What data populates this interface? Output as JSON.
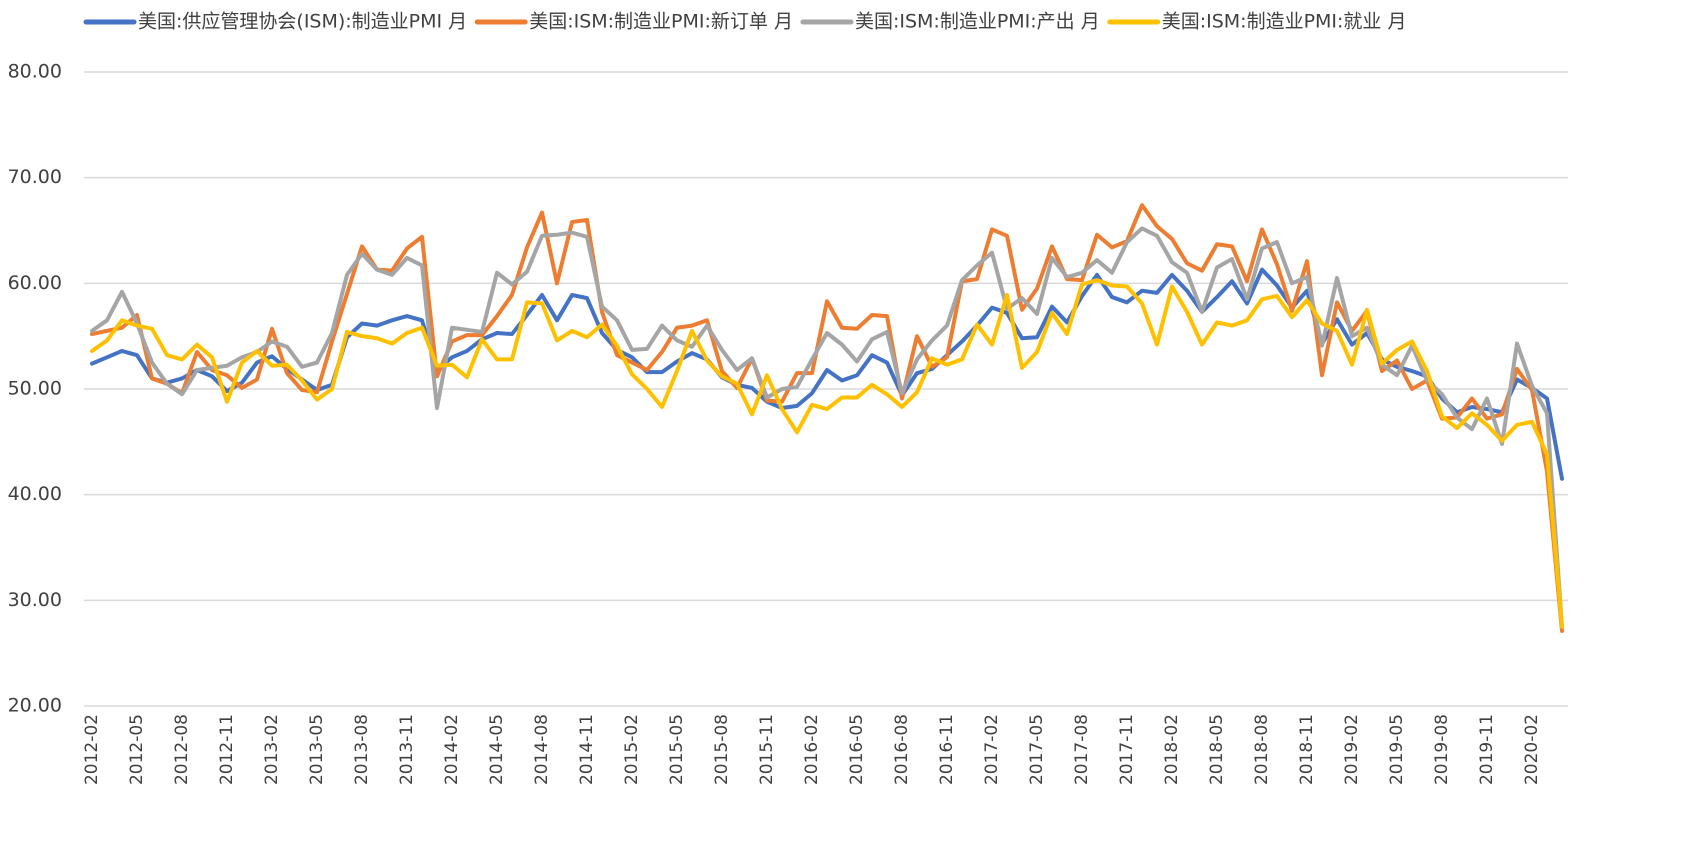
{
  "chart_data": {
    "type": "line",
    "categories": [
      "2012-02",
      null,
      null,
      "2012-05",
      null,
      null,
      "2012-08",
      null,
      null,
      "2012-11",
      null,
      null,
      "2013-02",
      null,
      null,
      "2013-05",
      null,
      null,
      "2013-08",
      null,
      null,
      "2013-11",
      null,
      null,
      "2014-02",
      null,
      null,
      "2014-05",
      null,
      null,
      "2014-08",
      null,
      null,
      "2014-11",
      null,
      null,
      "2015-02",
      null,
      null,
      "2015-05",
      null,
      null,
      "2015-08",
      null,
      null,
      "2015-11",
      null,
      null,
      "2016-02",
      null,
      null,
      "2016-05",
      null,
      null,
      "2016-08",
      null,
      null,
      "2016-11",
      null,
      null,
      "2017-02",
      null,
      null,
      "2017-05",
      null,
      null,
      "2017-08",
      null,
      null,
      "2017-11",
      null,
      null,
      "2018-02",
      null,
      null,
      "2018-05",
      null,
      null,
      "2018-08",
      null,
      null,
      "2018-11",
      null,
      null,
      "2019-02",
      null,
      null,
      "2019-05",
      null,
      null,
      "2019-08",
      null,
      null,
      "2019-11",
      null,
      null,
      "2020-02",
      null,
      null
    ],
    "series": [
      {
        "name": "美国:供应管理协会(ISM):制造业PMI 月",
        "color": "#4472c4",
        "values": [
          52.4,
          53.0,
          53.6,
          53.2,
          51.0,
          50.6,
          51.0,
          51.8,
          51.2,
          49.8,
          50.6,
          52.5,
          53.1,
          51.9,
          50.9,
          49.9,
          50.4,
          54.9,
          56.2,
          56.0,
          56.5,
          56.9,
          56.5,
          51.8,
          53.0,
          53.6,
          54.7,
          55.3,
          55.2,
          57.0,
          58.9,
          56.5,
          58.9,
          58.6,
          55.3,
          53.7,
          53.0,
          51.6,
          51.6,
          52.6,
          53.4,
          52.8,
          51.1,
          50.4,
          50.1,
          48.8,
          48.2,
          48.4,
          49.6,
          51.8,
          50.8,
          51.3,
          53.2,
          52.5,
          49.4,
          51.5,
          51.9,
          53.2,
          54.5,
          56.0,
          57.7,
          57.2,
          54.8,
          54.9,
          57.8,
          56.3,
          58.8,
          60.8,
          58.7,
          58.2,
          59.3,
          59.1,
          60.8,
          59.3,
          57.3,
          58.7,
          60.2,
          58.1,
          61.3,
          59.8,
          57.7,
          59.3,
          54.3,
          56.6,
          54.2,
          55.3,
          52.8,
          52.1,
          51.7,
          51.2,
          49.1,
          47.8,
          48.3,
          48.1,
          47.8,
          50.9,
          50.1,
          49.1,
          41.5
        ]
      },
      {
        "name": "美国:ISM:制造业PMI:新订单 月",
        "color": "#ed7d31",
        "values": [
          55.2,
          55.5,
          55.8,
          57.0,
          51.0,
          50.5,
          49.6,
          53.5,
          51.8,
          51.3,
          50.1,
          50.9,
          55.7,
          51.5,
          49.9,
          49.7,
          54.5,
          59.0,
          63.5,
          61.3,
          61.2,
          63.3,
          64.4,
          51.2,
          54.5,
          55.1,
          55.1,
          56.9,
          58.9,
          63.4,
          66.7,
          60.0,
          65.8,
          66.0,
          57.3,
          53.2,
          52.5,
          51.8,
          53.5,
          55.8,
          56.0,
          56.5,
          51.7,
          50.1,
          52.9,
          48.9,
          48.8,
          51.5,
          51.5,
          58.3,
          55.8,
          55.7,
          57.0,
          56.9,
          49.1,
          55.0,
          52.1,
          53.0,
          60.2,
          60.4,
          65.1,
          64.5,
          57.5,
          59.5,
          63.5,
          60.4,
          60.3,
          64.6,
          63.4,
          64.0,
          67.4,
          65.4,
          64.2,
          61.9,
          61.2,
          63.7,
          63.5,
          60.2,
          65.1,
          61.8,
          57.4,
          62.1,
          51.3,
          58.2,
          55.5,
          57.4,
          51.7,
          52.7,
          50.0,
          50.8,
          47.2,
          47.3,
          49.1,
          47.2,
          47.6,
          51.9,
          49.9,
          42.2,
          27.1
        ]
      },
      {
        "name": "美国:ISM:制造业PMI:产出 月",
        "color": "#a5a5a5",
        "values": [
          55.5,
          56.5,
          59.2,
          56.2,
          52.5,
          50.5,
          49.5,
          51.8,
          52.0,
          52.2,
          53.0,
          53.5,
          54.5,
          54.0,
          52.1,
          52.5,
          55.3,
          60.8,
          62.8,
          61.3,
          60.8,
          62.4,
          61.7,
          48.2,
          55.8,
          55.6,
          55.4,
          61.0,
          59.9,
          61.1,
          64.5,
          64.6,
          64.8,
          64.4,
          57.8,
          56.5,
          53.7,
          53.8,
          56.0,
          54.6,
          54.0,
          56.0,
          53.7,
          51.8,
          52.9,
          49.2,
          50.0,
          50.2,
          52.8,
          55.3,
          54.2,
          52.6,
          54.7,
          55.4,
          49.6,
          52.8,
          54.6,
          56.0,
          60.3,
          61.7,
          62.9,
          57.6,
          58.6,
          57.1,
          62.4,
          60.6,
          61.0,
          62.2,
          61.0,
          63.9,
          65.2,
          64.5,
          62.0,
          61.0,
          57.3,
          61.5,
          62.3,
          58.5,
          63.3,
          63.9,
          60.0,
          60.6,
          54.1,
          60.5,
          55.0,
          55.8,
          52.3,
          51.3,
          54.1,
          50.8,
          49.5,
          47.3,
          46.2,
          49.1,
          44.8,
          54.3,
          50.3,
          47.7,
          27.5
        ]
      },
      {
        "name": "美国:ISM:制造业PMI:就业 月",
        "color": "#ffc000",
        "values": [
          53.6,
          54.6,
          56.5,
          56.0,
          55.7,
          53.2,
          52.8,
          54.2,
          53.0,
          48.8,
          52.5,
          53.6,
          52.2,
          52.3,
          50.8,
          49.0,
          50.0,
          55.4,
          55.0,
          54.8,
          54.3,
          55.3,
          55.8,
          52.2,
          52.3,
          51.1,
          54.7,
          52.8,
          52.8,
          58.2,
          58.1,
          54.6,
          55.5,
          54.9,
          56.1,
          54.1,
          51.4,
          50.0,
          48.3,
          51.7,
          55.5,
          52.7,
          51.2,
          50.5,
          47.6,
          51.3,
          48.1,
          45.9,
          48.5,
          48.1,
          49.2,
          49.2,
          50.4,
          49.5,
          48.3,
          49.7,
          52.9,
          52.3,
          52.8,
          56.1,
          54.2,
          58.9,
          52.0,
          53.5,
          57.2,
          55.2,
          59.9,
          60.3,
          59.8,
          59.7,
          58.1,
          54.2,
          59.7,
          57.3,
          54.2,
          56.3,
          56.0,
          56.5,
          58.5,
          58.8,
          56.8,
          58.4,
          56.2,
          55.5,
          52.3,
          57.5,
          52.4,
          53.7,
          54.5,
          51.7,
          47.4,
          46.3,
          47.7,
          46.6,
          45.1,
          46.6,
          46.9,
          43.8,
          27.5
        ]
      }
    ],
    "ylim": [
      20,
      80
    ],
    "yticks": [
      {
        "value": 20,
        "label": "20.00"
      },
      {
        "value": 30,
        "label": "30.00"
      },
      {
        "value": 40,
        "label": "40.00"
      },
      {
        "value": 50,
        "label": "50.00"
      },
      {
        "value": 60,
        "label": "60.00"
      },
      {
        "value": 70,
        "label": "70.00"
      },
      {
        "value": 80,
        "label": "80.00"
      }
    ],
    "grid": true,
    "legend": "top"
  }
}
